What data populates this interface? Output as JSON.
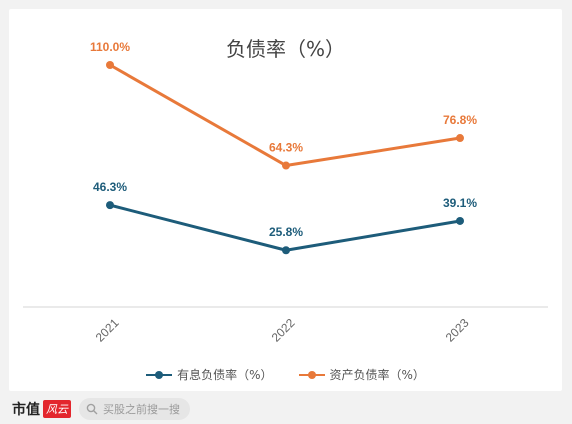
{
  "chart_data": {
    "type": "line",
    "title": "负债率（%）",
    "categories": [
      "2021",
      "2022",
      "2023"
    ],
    "ylim": [
      0,
      120
    ],
    "grid": false,
    "legend_position": "bottom-center",
    "series": [
      {
        "name": "有息负债率（%）",
        "values": [
          46.3,
          25.8,
          39.1
        ],
        "labels": [
          "46.3%",
          "25.8%",
          "39.1%"
        ],
        "color": "#1d5c7a"
      },
      {
        "name": "资产负债率（%）",
        "values": [
          110.0,
          64.3,
          76.8
        ],
        "labels": [
          "110.0%",
          "64.3%",
          "76.8%"
        ],
        "color": "#e8793a"
      }
    ]
  },
  "footer": {
    "brand": "市值",
    "brand_logo": "风云",
    "search_placeholder": "买股之前搜一搜",
    "search_icon": "search-icon"
  }
}
